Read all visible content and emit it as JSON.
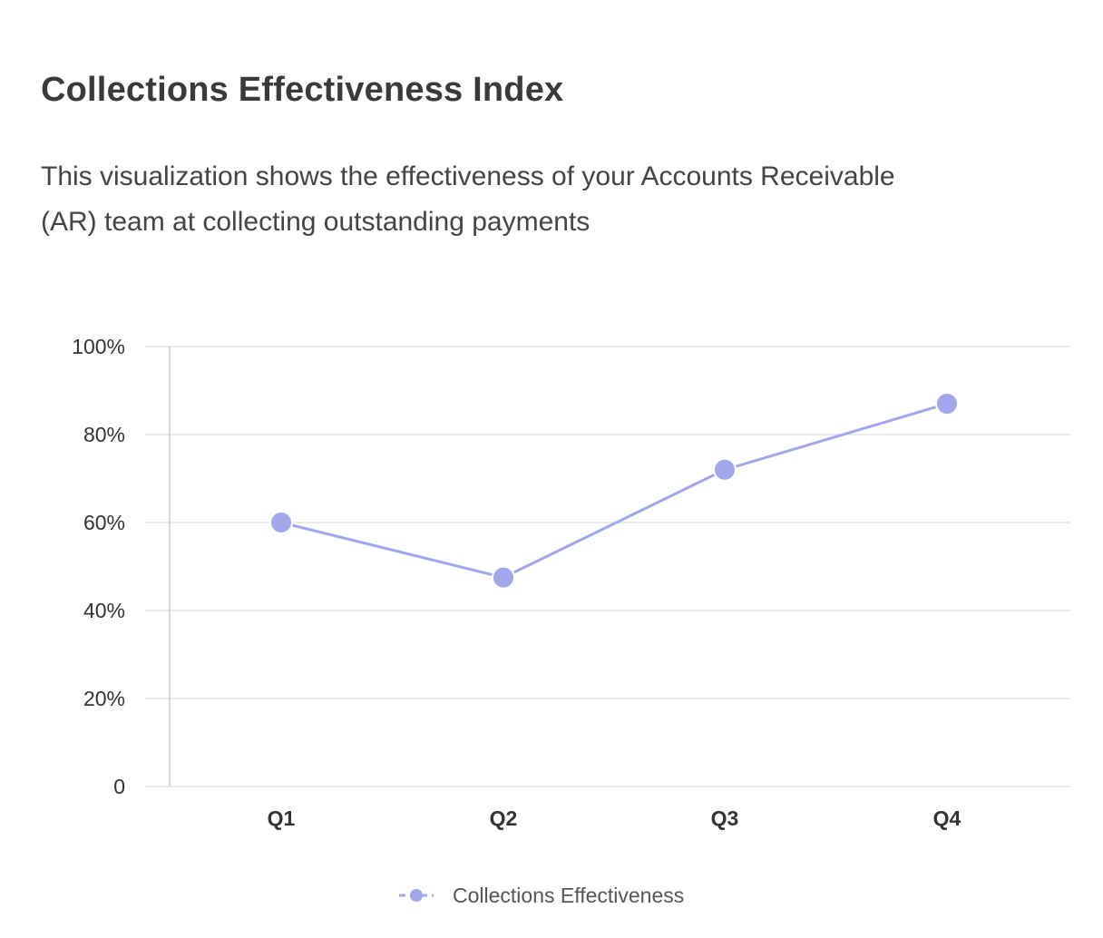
{
  "title": "Collections Effectiveness Index",
  "description": "This visualization shows the effectiveness of your Accounts Receivable (AR) team at collecting outstanding payments",
  "colors": {
    "series": "#a1a7ea",
    "grid": "#e3e3e3",
    "axis": "#cccccc"
  },
  "chart_data": {
    "type": "line",
    "title": "Collections Effectiveness Index",
    "xlabel": "",
    "ylabel": "",
    "categories": [
      "Q1",
      "Q2",
      "Q3",
      "Q4"
    ],
    "series": [
      {
        "name": "Collections Effectiveness",
        "values": [
          60,
          47.5,
          72,
          87
        ]
      }
    ],
    "ylim": [
      0,
      100
    ],
    "yticks": [
      0,
      20,
      40,
      60,
      80,
      100
    ],
    "ytick_labels": [
      "0",
      "20%",
      "40%",
      "60%",
      "80%",
      "100%"
    ],
    "grid": true,
    "legend": "bottom-center"
  }
}
